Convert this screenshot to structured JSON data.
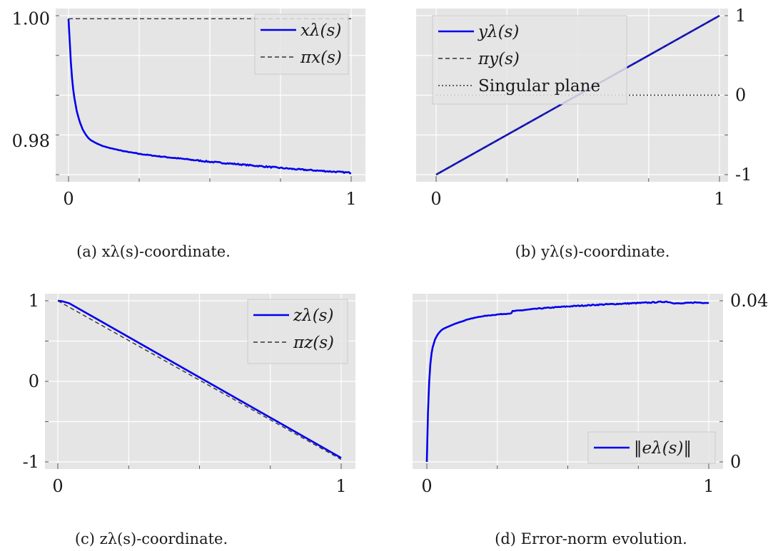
{
  "chart_data": [
    {
      "type": "line",
      "panel": "a",
      "caption": "(a) xλ(s)-coordinate.",
      "xlim": [
        0,
        1
      ],
      "ylim": [
        0.9745,
        1.0005
      ],
      "y_axis_side": "left",
      "grid": true,
      "legend_position": "top-right",
      "x_ticks": [
        {
          "value": 0,
          "label": "0"
        },
        {
          "value": 1,
          "label": "1"
        }
      ],
      "y_ticks": [
        {
          "value": 0.98,
          "label": "0.98"
        },
        {
          "value": 1.0,
          "label": "1.00"
        }
      ],
      "series": [
        {
          "name": "xλ(s)",
          "color": "#0000ee",
          "style": "solid",
          "x": [
            0,
            0.005,
            0.01,
            0.015,
            0.02,
            0.03,
            0.04,
            0.05,
            0.06,
            0.07,
            0.08,
            0.1,
            0.12,
            0.15,
            0.2,
            0.25,
            0.3,
            0.4,
            0.5,
            0.6,
            0.7,
            0.8,
            0.9,
            1.0
          ],
          "y": [
            1.0,
            0.9955,
            0.9915,
            0.989,
            0.9872,
            0.9847,
            0.9831,
            0.9819,
            0.9811,
            0.9805,
            0.9801,
            0.9796,
            0.9792,
            0.9788,
            0.9783,
            0.9779,
            0.9776,
            0.9771,
            0.9766,
            0.9762,
            0.9758,
            0.9754,
            0.9751,
            0.9748
          ],
          "noise": 0.0002
        },
        {
          "name": "πx(s)",
          "color": "#333333",
          "style": "dashed",
          "x": [
            0,
            1
          ],
          "y": [
            1.0,
            1.0
          ]
        }
      ]
    },
    {
      "type": "line",
      "panel": "b",
      "caption": "(b) yλ(s)-coordinate.",
      "xlim": [
        0,
        1
      ],
      "ylim": [
        -1.0,
        1.0
      ],
      "y_axis_side": "right",
      "grid": true,
      "legend_position": "top-left",
      "x_ticks": [
        {
          "value": 0,
          "label": "0"
        },
        {
          "value": 1,
          "label": "1"
        }
      ],
      "y_ticks": [
        {
          "value": -1,
          "label": "-1"
        },
        {
          "value": 0,
          "label": "0"
        },
        {
          "value": 1,
          "label": "1"
        }
      ],
      "series": [
        {
          "name": "yλ(s)",
          "color": "#0000ee",
          "style": "solid",
          "x": [
            0,
            1
          ],
          "y": [
            -1.0,
            1.0
          ]
        },
        {
          "name": "πy(s)",
          "color": "#333333",
          "style": "dashed",
          "x": [
            0,
            1
          ],
          "y": [
            -1.0,
            1.0
          ]
        },
        {
          "name": "Singular plane",
          "color": "#333333",
          "style": "dotted",
          "x": [
            0,
            1
          ],
          "y": [
            0,
            0
          ]
        }
      ]
    },
    {
      "type": "line",
      "panel": "c",
      "caption": "(c) zλ(s)-coordinate.",
      "xlim": [
        0,
        1
      ],
      "ylim": [
        -1.0,
        1.0
      ],
      "y_axis_side": "left",
      "grid": true,
      "legend_position": "top-right",
      "x_ticks": [
        {
          "value": 0,
          "label": "0"
        },
        {
          "value": 1,
          "label": "1"
        }
      ],
      "y_ticks": [
        {
          "value": -1,
          "label": "-1"
        },
        {
          "value": 0,
          "label": "0"
        },
        {
          "value": 1,
          "label": "1"
        }
      ],
      "series": [
        {
          "name": "zλ(s)",
          "color": "#0000ee",
          "style": "solid",
          "x": [
            0,
            0.01,
            0.02,
            0.04,
            1.0
          ],
          "y": [
            1.0,
            0.997,
            0.99,
            0.97,
            -0.95
          ]
        },
        {
          "name": "πz(s)",
          "color": "#333333",
          "style": "dashed",
          "x": [
            0,
            1
          ],
          "y": [
            1.0,
            -0.97
          ]
        }
      ]
    },
    {
      "type": "line",
      "panel": "d",
      "caption": "(d) Error-norm evolution.",
      "xlim": [
        0,
        1
      ],
      "ylim": [
        0,
        0.04
      ],
      "y_axis_side": "right",
      "grid": true,
      "legend_position": "bottom-right",
      "x_ticks": [
        {
          "value": 0,
          "label": "0"
        },
        {
          "value": 1,
          "label": "1"
        }
      ],
      "y_ticks": [
        {
          "value": 0,
          "label": "0"
        },
        {
          "value": 0.04,
          "label": "0.04"
        }
      ],
      "series": [
        {
          "name": "‖eλ(s)‖",
          "color": "#0000ee",
          "style": "solid",
          "x": [
            0,
            0.003,
            0.006,
            0.01,
            0.015,
            0.02,
            0.03,
            0.04,
            0.05,
            0.06,
            0.08,
            0.1,
            0.15,
            0.2,
            0.25,
            0.3,
            0.301,
            0.4,
            0.5,
            0.6,
            0.7,
            0.8,
            0.85,
            0.88,
            0.9,
            0.95,
            1.0
          ],
          "y": [
            0.0,
            0.0095,
            0.0165,
            0.0222,
            0.0262,
            0.0283,
            0.0306,
            0.0318,
            0.0326,
            0.0331,
            0.0337,
            0.0343,
            0.0355,
            0.0362,
            0.0366,
            0.0369,
            0.0374,
            0.0381,
            0.0386,
            0.039,
            0.0393,
            0.0396,
            0.0398,
            0.0394,
            0.0393,
            0.0396,
            0.0395
          ],
          "noise": 0.00025
        }
      ]
    }
  ]
}
